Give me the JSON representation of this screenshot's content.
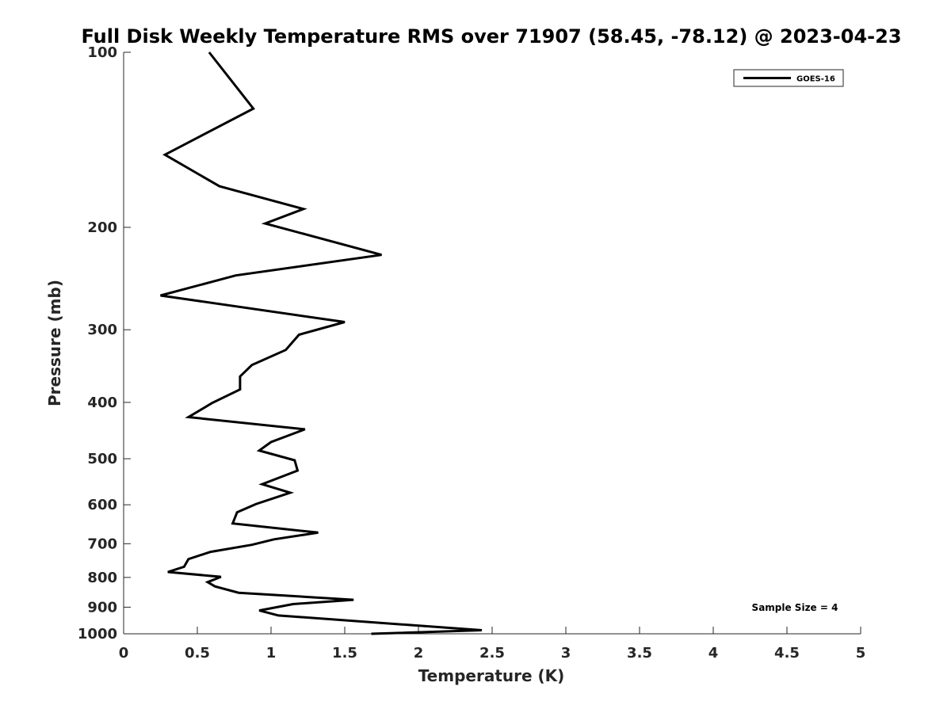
{
  "chart_data": {
    "type": "line",
    "title": "Full Disk Weekly Temperature RMS over 71907 (58.45, -78.12) @ 2023-04-23",
    "xlabel": "Temperature (K)",
    "ylabel": "Pressure (mb)",
    "xlim": [
      0,
      5
    ],
    "ylim": [
      100,
      1000
    ],
    "yscale": "log",
    "y_reversed": true,
    "x_ticks": [
      0,
      0.5,
      1,
      1.5,
      2,
      2.5,
      3,
      3.5,
      4,
      4.5,
      5
    ],
    "x_tick_labels": [
      "0",
      "0.5",
      "1",
      "1.5",
      "2",
      "2.5",
      "3",
      "3.5",
      "4",
      "4.5",
      "5"
    ],
    "y_ticks": [
      100,
      200,
      300,
      400,
      500,
      600,
      700,
      800,
      900,
      1000
    ],
    "y_tick_labels": [
      "100",
      "200",
      "300",
      "400",
      "500",
      "600",
      "700",
      "800",
      "900",
      "1000"
    ],
    "grid": false,
    "legend_position": "top-right",
    "annotation": "Sample Size = 4",
    "series": [
      {
        "name": "GOES-16",
        "color": "#000000",
        "points": [
          [
            0.58,
            100
          ],
          [
            0.88,
            125
          ],
          [
            0.28,
            150
          ],
          [
            0.65,
            170
          ],
          [
            1.22,
            186
          ],
          [
            0.96,
            197
          ],
          [
            1.75,
            223
          ],
          [
            0.76,
            242
          ],
          [
            0.25,
            262
          ],
          [
            1.5,
            291
          ],
          [
            1.19,
            306
          ],
          [
            1.1,
            325
          ],
          [
            0.87,
            345
          ],
          [
            0.79,
            361
          ],
          [
            0.79,
            380
          ],
          [
            0.6,
            401
          ],
          [
            0.44,
            424
          ],
          [
            1.23,
            445
          ],
          [
            1.0,
            468
          ],
          [
            0.92,
            484
          ],
          [
            1.16,
            503
          ],
          [
            1.18,
            524
          ],
          [
            0.94,
            553
          ],
          [
            1.13,
            572
          ],
          [
            0.9,
            598
          ],
          [
            0.77,
            618
          ],
          [
            0.74,
            646
          ],
          [
            1.32,
            670
          ],
          [
            1.02,
            688
          ],
          [
            0.87,
            703
          ],
          [
            0.59,
            723
          ],
          [
            0.44,
            744
          ],
          [
            0.41,
            767
          ],
          [
            0.3,
            783
          ],
          [
            0.66,
            798
          ],
          [
            0.57,
            815
          ],
          [
            0.62,
            829
          ],
          [
            0.78,
            850
          ],
          [
            1.56,
            874
          ],
          [
            1.15,
            889
          ],
          [
            0.92,
            912
          ],
          [
            1.05,
            930
          ],
          [
            2.43,
            986
          ],
          [
            1.68,
            1000
          ]
        ]
      }
    ]
  }
}
